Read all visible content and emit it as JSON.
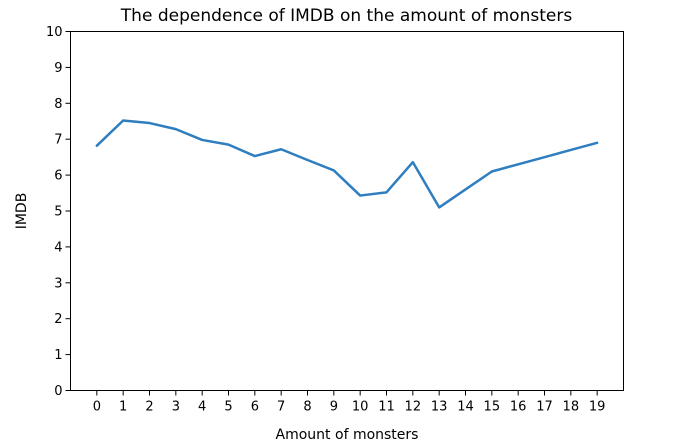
{
  "chart_data": {
    "type": "line",
    "title": "The dependence of IMDB on the amount of monsters",
    "xlabel": "Amount of monsters",
    "ylabel": "IMDB",
    "x": [
      0,
      1,
      2,
      3,
      4,
      5,
      6,
      7,
      8,
      9,
      10,
      11,
      12,
      13,
      14,
      15,
      16,
      17,
      18,
      19
    ],
    "series": [
      {
        "values": [
          6.82,
          7.52,
          7.45,
          7.28,
          6.98,
          6.85,
          6.53,
          6.72,
          6.42,
          6.13,
          5.43,
          5.52,
          6.36,
          5.1,
          5.6,
          6.1,
          6.3,
          6.5,
          6.7,
          6.9
        ],
        "color": "#2f7ec0"
      }
    ],
    "xlim": [
      -1,
      20
    ],
    "ylim": [
      0,
      10
    ],
    "xticks": [
      "0",
      "1",
      "2",
      "3",
      "4",
      "5",
      "6",
      "7",
      "8",
      "9",
      "10",
      "11",
      "12",
      "13",
      "14",
      "15",
      "16",
      "17",
      "18",
      "19"
    ],
    "yticks": [
      "0",
      "1",
      "2",
      "3",
      "4",
      "5",
      "6",
      "7",
      "8",
      "9",
      "10"
    ],
    "grid": false,
    "legend": "none"
  }
}
